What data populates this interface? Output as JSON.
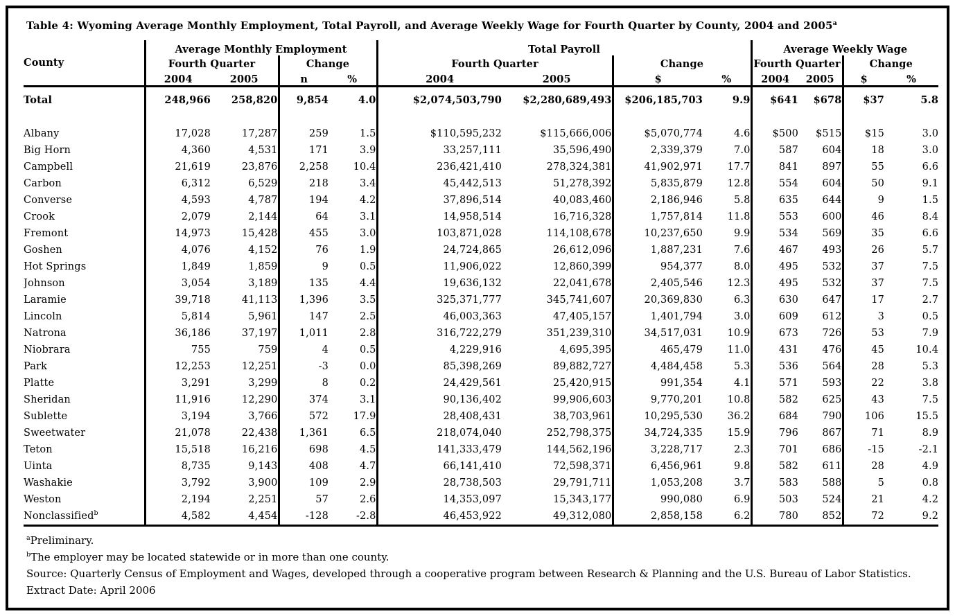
{
  "title": {
    "text": "Table 4: Wyoming Average Monthly Employment, Total Payroll, and Average Weekly Wage for Fourth Quarter by County, 2004 and 2005",
    "superscript": "a"
  },
  "colors": {
    "text": "#000000",
    "border": "#000000",
    "background": "#ffffff"
  },
  "table": {
    "county_header": "County",
    "section_headers": [
      "Average Monthly Employment",
      "Total Payroll",
      "Average Weekly Wage"
    ],
    "subheaders": {
      "fourth_quarter": "Fourth Quarter",
      "change": "Change"
    },
    "col_headers": {
      "y2004": "2004",
      "y2005": "2005",
      "n": "n",
      "pct": "%",
      "dollar": "$"
    },
    "total_row": {
      "county": "Total",
      "values": [
        "248,966",
        "258,820",
        "9,854",
        "4.0",
        "$2,074,503,790",
        "$2,280,689,493",
        "$206,185,703",
        "9.9",
        "$641",
        "$678",
        "$37",
        "5.8"
      ]
    },
    "rows": [
      {
        "county": "Albany",
        "values": [
          "17,028",
          "17,287",
          "259",
          "1.5",
          "$110,595,232",
          "$115,666,006",
          "$5,070,774",
          "4.6",
          "$500",
          "$515",
          "$15",
          "3.0"
        ]
      },
      {
        "county": "Big Horn",
        "values": [
          "4,360",
          "4,531",
          "171",
          "3.9",
          "33,257,111",
          "35,596,490",
          "2,339,379",
          "7.0",
          "587",
          "604",
          "18",
          "3.0"
        ]
      },
      {
        "county": "Campbell",
        "values": [
          "21,619",
          "23,876",
          "2,258",
          "10.4",
          "236,421,410",
          "278,324,381",
          "41,902,971",
          "17.7",
          "841",
          "897",
          "55",
          "6.6"
        ]
      },
      {
        "county": "Carbon",
        "values": [
          "6,312",
          "6,529",
          "218",
          "3.4",
          "45,442,513",
          "51,278,392",
          "5,835,879",
          "12.8",
          "554",
          "604",
          "50",
          "9.1"
        ]
      },
      {
        "county": "Converse",
        "values": [
          "4,593",
          "4,787",
          "194",
          "4.2",
          "37,896,514",
          "40,083,460",
          "2,186,946",
          "5.8",
          "635",
          "644",
          "9",
          "1.5"
        ]
      },
      {
        "county": "Crook",
        "values": [
          "2,079",
          "2,144",
          "64",
          "3.1",
          "14,958,514",
          "16,716,328",
          "1,757,814",
          "11.8",
          "553",
          "600",
          "46",
          "8.4"
        ]
      },
      {
        "county": "Fremont",
        "values": [
          "14,973",
          "15,428",
          "455",
          "3.0",
          "103,871,028",
          "114,108,678",
          "10,237,650",
          "9.9",
          "534",
          "569",
          "35",
          "6.6"
        ]
      },
      {
        "county": "Goshen",
        "values": [
          "4,076",
          "4,152",
          "76",
          "1.9",
          "24,724,865",
          "26,612,096",
          "1,887,231",
          "7.6",
          "467",
          "493",
          "26",
          "5.7"
        ]
      },
      {
        "county": "Hot Springs",
        "values": [
          "1,849",
          "1,859",
          "9",
          "0.5",
          "11,906,022",
          "12,860,399",
          "954,377",
          "8.0",
          "495",
          "532",
          "37",
          "7.5"
        ]
      },
      {
        "county": "Johnson",
        "values": [
          "3,054",
          "3,189",
          "135",
          "4.4",
          "19,636,132",
          "22,041,678",
          "2,405,546",
          "12.3",
          "495",
          "532",
          "37",
          "7.5"
        ]
      },
      {
        "county": "Laramie",
        "values": [
          "39,718",
          "41,113",
          "1,396",
          "3.5",
          "325,371,777",
          "345,741,607",
          "20,369,830",
          "6.3",
          "630",
          "647",
          "17",
          "2.7"
        ]
      },
      {
        "county": "Lincoln",
        "values": [
          "5,814",
          "5,961",
          "147",
          "2.5",
          "46,003,363",
          "47,405,157",
          "1,401,794",
          "3.0",
          "609",
          "612",
          "3",
          "0.5"
        ]
      },
      {
        "county": "Natrona",
        "values": [
          "36,186",
          "37,197",
          "1,011",
          "2.8",
          "316,722,279",
          "351,239,310",
          "34,517,031",
          "10.9",
          "673",
          "726",
          "53",
          "7.9"
        ]
      },
      {
        "county": "Niobrara",
        "values": [
          "755",
          "759",
          "4",
          "0.5",
          "4,229,916",
          "4,695,395",
          "465,479",
          "11.0",
          "431",
          "476",
          "45",
          "10.4"
        ]
      },
      {
        "county": "Park",
        "values": [
          "12,253",
          "12,251",
          "-3",
          "0.0",
          "85,398,269",
          "89,882,727",
          "4,484,458",
          "5.3",
          "536",
          "564",
          "28",
          "5.3"
        ]
      },
      {
        "county": "Platte",
        "values": [
          "3,291",
          "3,299",
          "8",
          "0.2",
          "24,429,561",
          "25,420,915",
          "991,354",
          "4.1",
          "571",
          "593",
          "22",
          "3.8"
        ]
      },
      {
        "county": "Sheridan",
        "values": [
          "11,916",
          "12,290",
          "374",
          "3.1",
          "90,136,402",
          "99,906,603",
          "9,770,201",
          "10.8",
          "582",
          "625",
          "43",
          "7.5"
        ]
      },
      {
        "county": "Sublette",
        "values": [
          "3,194",
          "3,766",
          "572",
          "17.9",
          "28,408,431",
          "38,703,961",
          "10,295,530",
          "36.2",
          "684",
          "790",
          "106",
          "15.5"
        ]
      },
      {
        "county": "Sweetwater",
        "values": [
          "21,078",
          "22,438",
          "1,361",
          "6.5",
          "218,074,040",
          "252,798,375",
          "34,724,335",
          "15.9",
          "796",
          "867",
          "71",
          "8.9"
        ]
      },
      {
        "county": "Teton",
        "values": [
          "15,518",
          "16,216",
          "698",
          "4.5",
          "141,333,479",
          "144,562,196",
          "3,228,717",
          "2.3",
          "701",
          "686",
          "-15",
          "-2.1"
        ]
      },
      {
        "county": "Uinta",
        "values": [
          "8,735",
          "9,143",
          "408",
          "4.7",
          "66,141,410",
          "72,598,371",
          "6,456,961",
          "9.8",
          "582",
          "611",
          "28",
          "4.9"
        ]
      },
      {
        "county": "Washakie",
        "values": [
          "3,792",
          "3,900",
          "109",
          "2.9",
          "28,738,503",
          "29,791,711",
          "1,053,208",
          "3.7",
          "583",
          "588",
          "5",
          "0.8"
        ]
      },
      {
        "county": "Weston",
        "values": [
          "2,194",
          "2,251",
          "57",
          "2.6",
          "14,353,097",
          "15,343,177",
          "990,080",
          "6.9",
          "503",
          "524",
          "21",
          "4.2"
        ]
      },
      {
        "county": "Nonclassified",
        "sup": "b",
        "values": [
          "4,582",
          "4,454",
          "-128",
          "-2.8",
          "46,453,922",
          "49,312,080",
          "2,858,158",
          "6.2",
          "780",
          "852",
          "72",
          "9.2"
        ]
      }
    ]
  },
  "footnotes": [
    {
      "sup": "a",
      "text": "Preliminary."
    },
    {
      "sup": "b",
      "text": "The employer may be located statewide or in more than one county."
    },
    {
      "text": "Source: Quarterly Census of Employment and Wages, developed through a cooperative program between Research & Planning and the U.S. Bureau of Labor Statistics."
    },
    {
      "text": "Extract Date: April 2006"
    }
  ]
}
